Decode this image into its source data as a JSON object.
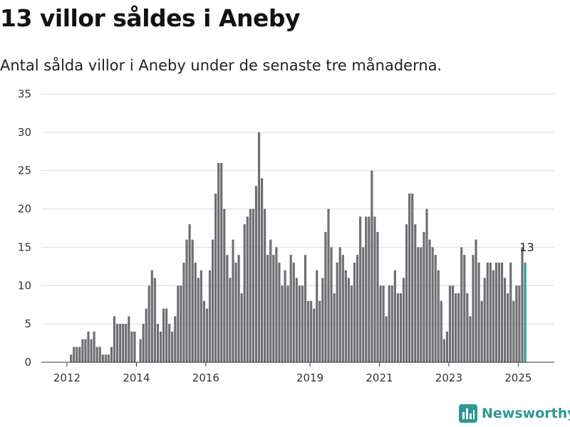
{
  "header": {
    "title": "13 villor såldes i Aneby",
    "subtitle": "Antal sålda villor i Aneby under de senaste tre månaderna."
  },
  "brand": {
    "name": "Newsworthy",
    "color": "#2a9a92",
    "icon": "bar-chart-logo-icon"
  },
  "chart_data": {
    "type": "bar",
    "title": "",
    "xlabel": "",
    "ylabel": "",
    "ylim": [
      0,
      35
    ],
    "yticks": [
      0,
      5,
      10,
      15,
      20,
      25,
      30,
      35
    ],
    "grid": true,
    "x_tick_labels": [
      "2012",
      "2014",
      "2016",
      "2019",
      "2021",
      "2023",
      "2025"
    ],
    "x_tick_years": [
      2012,
      2014,
      2016,
      2019,
      2021,
      2023,
      2025
    ],
    "frequency": "monthly",
    "first_month": "2012-01",
    "bar_color": "#6d6d72",
    "highlight_color": "#2a9a92",
    "highlight_label": "13",
    "values": [
      0,
      1,
      2,
      2,
      2,
      3,
      3,
      4,
      3,
      4,
      2,
      2,
      1,
      1,
      1,
      2,
      6,
      5,
      5,
      5,
      5,
      6,
      4,
      4,
      0,
      3,
      5,
      7,
      10,
      12,
      11,
      5,
      4,
      7,
      7,
      5,
      4,
      6,
      10,
      10,
      13,
      16,
      18,
      16,
      13,
      11,
      12,
      8,
      7,
      12,
      16,
      22,
      26,
      26,
      20,
      14,
      11,
      16,
      13,
      14,
      9,
      18,
      19,
      20,
      20,
      23,
      30,
      24,
      20,
      14,
      16,
      14,
      15,
      13,
      10,
      12,
      10,
      14,
      13,
      11,
      10,
      10,
      14,
      8,
      8,
      7,
      12,
      8,
      11,
      17,
      20,
      15,
      9,
      13,
      15,
      14,
      12,
      11,
      10,
      13,
      14,
      19,
      15,
      19,
      19,
      25,
      19,
      17,
      10,
      10,
      6,
      10,
      10,
      12,
      9,
      9,
      11,
      18,
      22,
      22,
      18,
      15,
      15,
      17,
      20,
      16,
      15,
      14,
      12,
      8,
      3,
      4,
      10,
      10,
      9,
      9,
      15,
      14,
      9,
      6,
      14,
      16,
      13,
      8,
      11,
      13,
      13,
      12,
      13,
      13,
      13,
      11,
      9,
      13,
      8,
      10,
      10,
      15,
      13
    ]
  }
}
